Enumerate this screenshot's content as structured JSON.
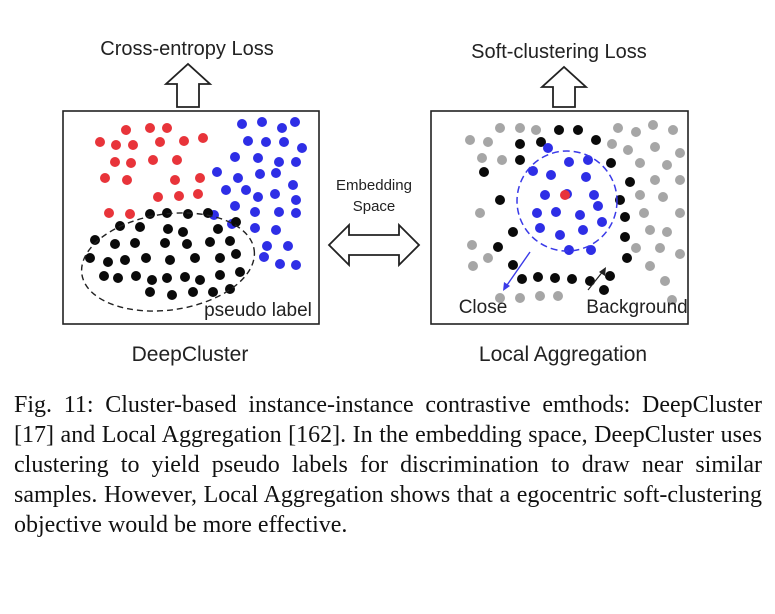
{
  "figure": {
    "left_panel": {
      "top_label": "Cross-entropy Loss",
      "bottom_label": "DeepCluster",
      "annotation": "pseudo label"
    },
    "middle": {
      "label_line1": "Embedding",
      "label_line2": "Space"
    },
    "right_panel": {
      "top_label": "Soft-clustering Loss",
      "bottom_label": "Local Aggregation",
      "annotation_close": "Close",
      "annotation_background": "Background"
    },
    "colors": {
      "red": "#e8343a",
      "blue": "#2e2ee6",
      "black": "#0a0a0a",
      "gray": "#a6a6a6"
    }
  },
  "caption": {
    "text": "Fig. 11: Cluster-based instance-instance contrastive emthods: DeepCluster [17] and Local Aggregation [162]. In the embedding space, DeepCluster uses clustering to yield pseudo labels for discrimination to draw near similar samples. However, Local Aggregation shows that a egocentric soft-clustering objective would be more effective."
  }
}
